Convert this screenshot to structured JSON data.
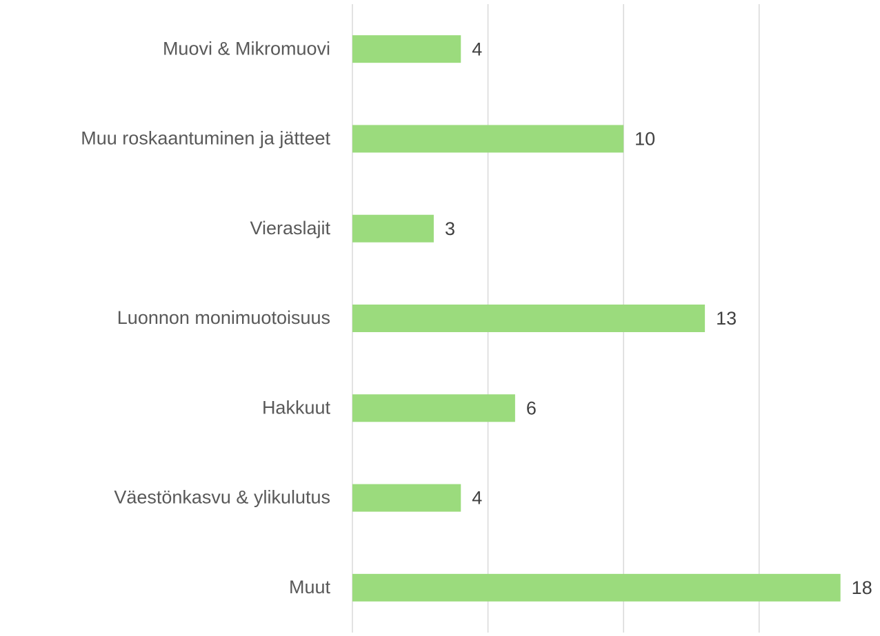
{
  "chart_data": {
    "type": "bar",
    "orientation": "horizontal",
    "categories": [
      "Muovi & Mikromuovi",
      "Muu roskaantuminen ja jätteet",
      "Vieraslajit",
      "Luonnon monimuotoisuus",
      "Hakkuut",
      "Väestönkasvu & ylikulutus",
      "Muut"
    ],
    "values": [
      4,
      10,
      3,
      13,
      6,
      4,
      18
    ],
    "color": "#9bdb7d",
    "xlim": [
      0,
      19
    ],
    "xticks": [
      0,
      5,
      10,
      15
    ],
    "grid": true
  }
}
